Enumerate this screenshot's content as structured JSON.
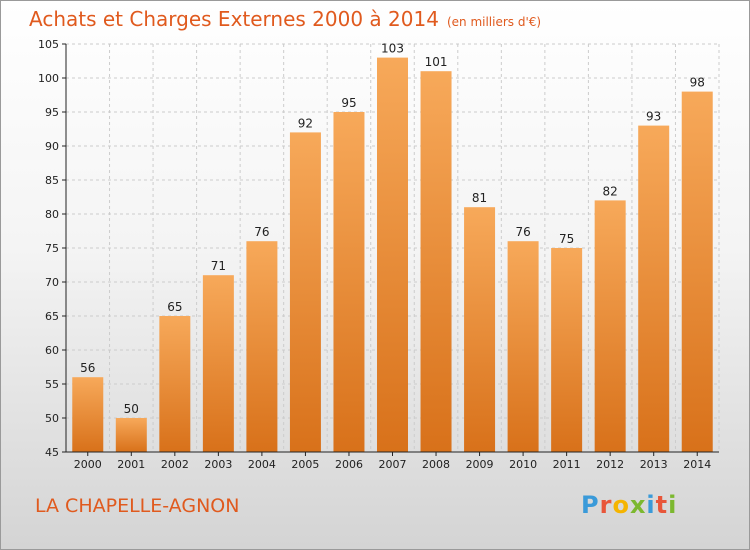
{
  "chart_data": {
    "type": "bar",
    "title": "Achats et Charges Externes 2000 à 2014",
    "subtitle": "(en milliers d'€)",
    "categories": [
      "2000",
      "2001",
      "2002",
      "2003",
      "2004",
      "2005",
      "2006",
      "2007",
      "2008",
      "2009",
      "2010",
      "2011",
      "2012",
      "2013",
      "2014"
    ],
    "values": [
      56,
      50,
      65,
      71,
      76,
      92,
      95,
      103,
      101,
      81,
      76,
      75,
      82,
      93,
      98
    ],
    "ylim": [
      45,
      105
    ],
    "yticks": [
      45,
      50,
      55,
      60,
      65,
      70,
      75,
      80,
      85,
      90,
      95,
      100,
      105
    ],
    "grid": true,
    "bar_color": "#f08c28"
  },
  "footer": {
    "commune": "LA CHAPELLE-AGNON",
    "logo_letters": [
      {
        "char": "P",
        "color": "#3a9ad9"
      },
      {
        "char": "r",
        "color": "#e8563a"
      },
      {
        "char": "o",
        "color": "#f5b400"
      },
      {
        "char": "x",
        "color": "#7cb82f"
      },
      {
        "char": "i",
        "color": "#3a9ad9"
      },
      {
        "char": "t",
        "color": "#e8563a"
      },
      {
        "char": "i",
        "color": "#7cb82f"
      }
    ]
  },
  "colors": {
    "accent": "#e05a1e",
    "axis": "#222222",
    "grid": "#cccccc"
  }
}
